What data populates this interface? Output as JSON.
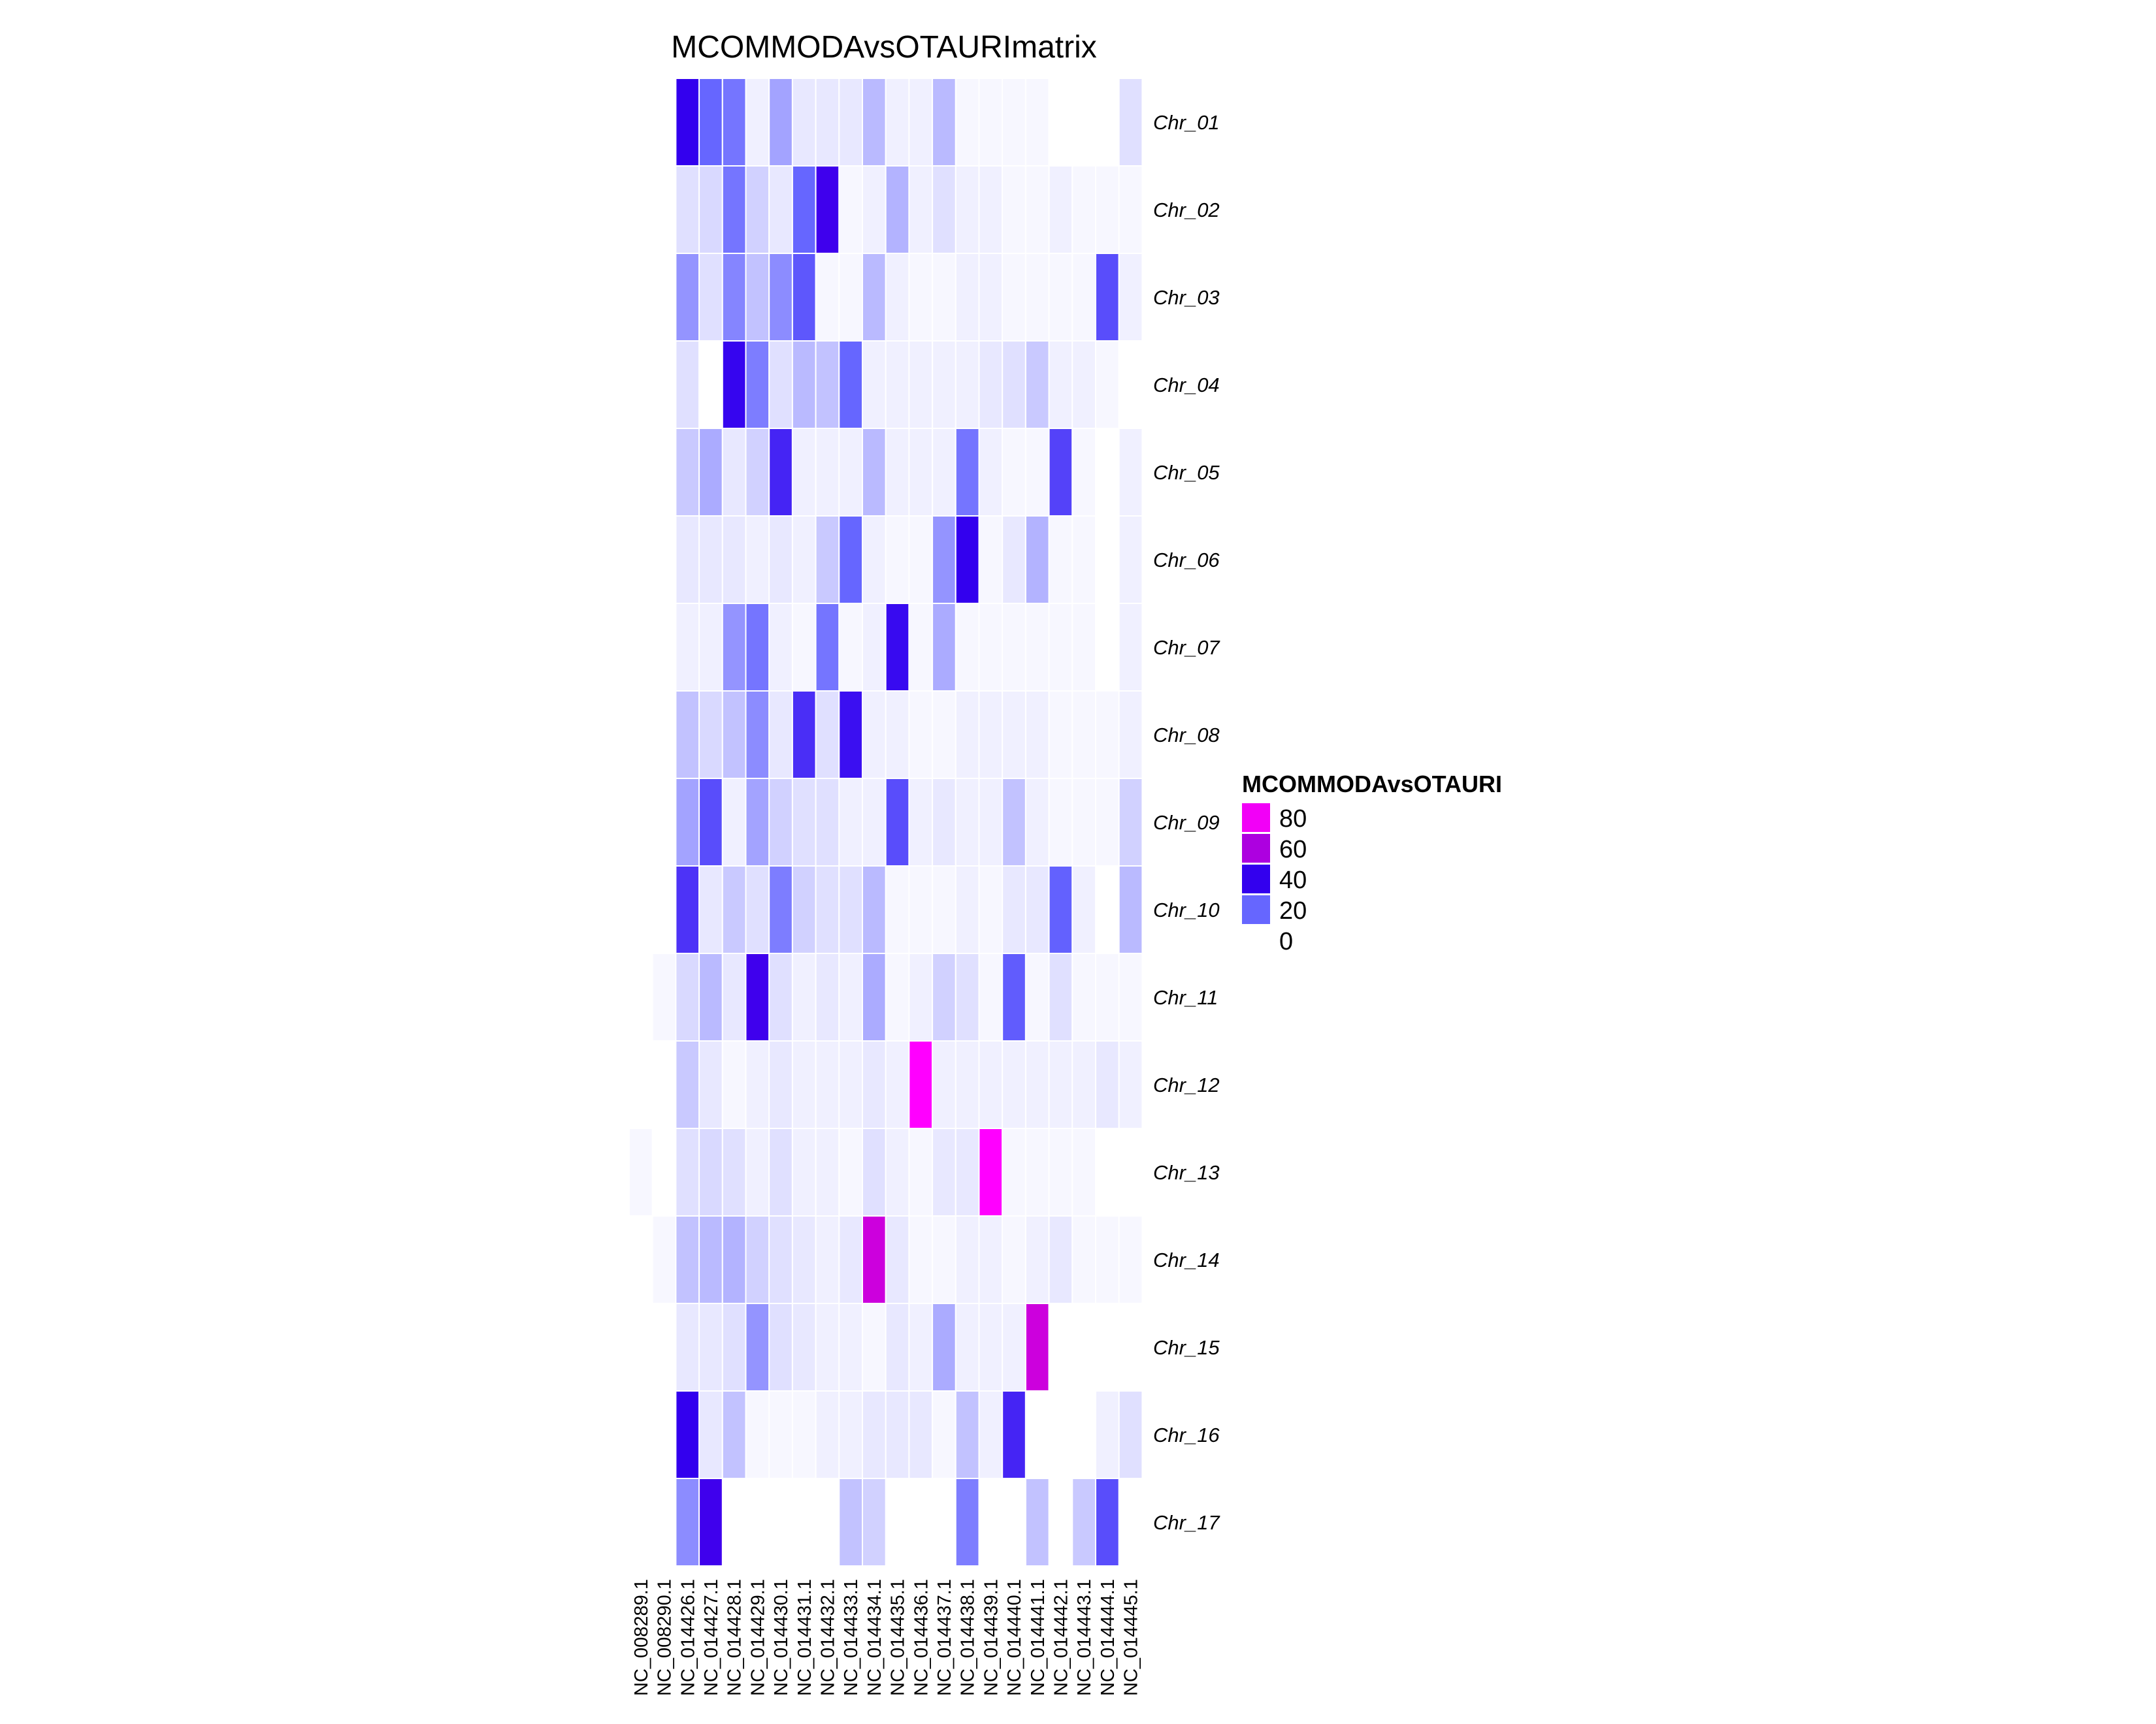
{
  "chart_data": {
    "type": "heatmap",
    "title": "MCOMMODAvsOTAURImatrix",
    "columns": [
      "NC_008289.1",
      "NC_008290.1",
      "NC_014426.1",
      "NC_014427.1",
      "NC_014428.1",
      "NC_014429.1",
      "NC_014430.1",
      "NC_014431.1",
      "NC_014432.1",
      "NC_014433.1",
      "NC_014434.1",
      "NC_014435.1",
      "NC_014436.1",
      "NC_014437.1",
      "NC_014438.1",
      "NC_014439.1",
      "NC_014440.1",
      "NC_014441.1",
      "NC_014442.1",
      "NC_014443.1",
      "NC_014444.1",
      "NC_014445.1"
    ],
    "rows": [
      "Chr_01",
      "Chr_02",
      "Chr_03",
      "Chr_04",
      "Chr_05",
      "Chr_06",
      "Chr_07",
      "Chr_08",
      "Chr_09",
      "Chr_10",
      "Chr_11",
      "Chr_12",
      "Chr_13",
      "Chr_14",
      "Chr_15",
      "Chr_16",
      "Chr_17"
    ],
    "values": [
      [
        null,
        null,
        40,
        20,
        18,
        2,
        12,
        3,
        3,
        3,
        9,
        2,
        2,
        9,
        1,
        1,
        1,
        1,
        0,
        0,
        0,
        4
      ],
      [
        null,
        null,
        4,
        5,
        18,
        6,
        3,
        20,
        42,
        1,
        2,
        10,
        2,
        4,
        2,
        2,
        1,
        1,
        2,
        1,
        1,
        1
      ],
      [
        null,
        null,
        14,
        4,
        16,
        8,
        15,
        23,
        1,
        1,
        9,
        2,
        1,
        1,
        2,
        2,
        1,
        1,
        1,
        1,
        25,
        2
      ],
      [
        null,
        null,
        4,
        0,
        39,
        17,
        4,
        9,
        8,
        20,
        2,
        2,
        2,
        2,
        2,
        3,
        4,
        7,
        2,
        2,
        1,
        0
      ],
      [
        null,
        null,
        7,
        11,
        3,
        6,
        33,
        2,
        2,
        2,
        9,
        2,
        2,
        2,
        18,
        2,
        1,
        1,
        27,
        1,
        0,
        2
      ],
      [
        null,
        null,
        3,
        3,
        3,
        2,
        3,
        2,
        7,
        20,
        2,
        1,
        1,
        14,
        40,
        1,
        3,
        10,
        1,
        1,
        0,
        2
      ],
      [
        null,
        null,
        2,
        2,
        14,
        18,
        2,
        1,
        18,
        1,
        2,
        38,
        1,
        11,
        1,
        1,
        1,
        1,
        1,
        1,
        0,
        2
      ],
      [
        null,
        null,
        8,
        5,
        8,
        15,
        3,
        31,
        4,
        37,
        2,
        2,
        1,
        1,
        2,
        2,
        2,
        2,
        1,
        1,
        1,
        2
      ],
      [
        null,
        null,
        12,
        25,
        2,
        12,
        6,
        4,
        4,
        2,
        2,
        25,
        2,
        3,
        2,
        2,
        8,
        2,
        1,
        1,
        1,
        6
      ],
      [
        null,
        null,
        30,
        3,
        7,
        4,
        17,
        6,
        4,
        4,
        9,
        1,
        1,
        1,
        2,
        1,
        3,
        3,
        21,
        2,
        0,
        9
      ],
      [
        null,
        1,
        5,
        9,
        3,
        42,
        4,
        2,
        3,
        2,
        11,
        1,
        2,
        6,
        4,
        1,
        22,
        1,
        4,
        1,
        1,
        1
      ],
      [
        null,
        null,
        7,
        3,
        1,
        2,
        3,
        2,
        2,
        2,
        3,
        2,
        85,
        2,
        2,
        2,
        2,
        2,
        2,
        2,
        3,
        2
      ],
      [
        1,
        null,
        4,
        5,
        4,
        2,
        4,
        2,
        2,
        1,
        4,
        2,
        1,
        3,
        3,
        85,
        1,
        1,
        1,
        1,
        0,
        0
      ],
      [
        null,
        1,
        8,
        9,
        10,
        6,
        4,
        3,
        2,
        3,
        65,
        3,
        1,
        1,
        2,
        2,
        1,
        2,
        3,
        1,
        1,
        1
      ],
      [
        null,
        null,
        3,
        3,
        4,
        14,
        4,
        3,
        2,
        2,
        1,
        3,
        2,
        11,
        2,
        2,
        2,
        65,
        0,
        0,
        0,
        0
      ],
      [
        null,
        null,
        40,
        3,
        8,
        1,
        1,
        1,
        2,
        2,
        3,
        3,
        3,
        1,
        8,
        2,
        33,
        0,
        0,
        0,
        2,
        4
      ],
      [
        null,
        null,
        15,
        42,
        null,
        null,
        null,
        null,
        null,
        8,
        6,
        null,
        null,
        null,
        17,
        null,
        null,
        8,
        null,
        7,
        25,
        null
      ]
    ],
    "colorscale": {
      "low": "#ffffff",
      "mid1": "#6666ff",
      "mid2": "#3300ee",
      "mid3": "#cc00dd",
      "high": "#ff00ff"
    },
    "legend": {
      "title": "MCOMMODAvsOTAURI",
      "placement": "right",
      "ticks": [
        "80",
        "60",
        "40",
        "20",
        "0"
      ],
      "tick_values": [
        80,
        60,
        40,
        20,
        0
      ],
      "max": 85
    }
  }
}
